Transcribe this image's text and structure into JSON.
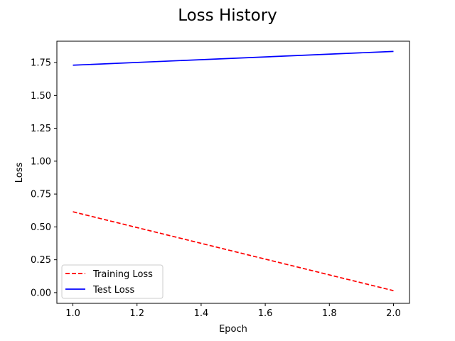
{
  "chart_data": {
    "type": "line",
    "title": "Loss History",
    "xlabel": "Epoch",
    "ylabel": "Loss",
    "xlim": [
      0.95,
      2.05
    ],
    "ylim": [
      -0.0815,
      1.9125
    ],
    "xticks": [
      1.0,
      1.2,
      1.4,
      1.6,
      1.8,
      2.0
    ],
    "xtick_labels": [
      "1.0",
      "1.2",
      "1.4",
      "1.6",
      "1.8",
      "2.0"
    ],
    "yticks": [
      0.0,
      0.25,
      0.5,
      0.75,
      1.0,
      1.25,
      1.5,
      1.75
    ],
    "ytick_labels": [
      "0.00",
      "0.25",
      "0.50",
      "0.75",
      "1.00",
      "1.25",
      "1.50",
      "1.75"
    ],
    "grid": false,
    "legend_position": "lower-left",
    "series": [
      {
        "name": "Training Loss",
        "x": [
          1.0,
          2.0
        ],
        "y": [
          0.615,
          0.015
        ],
        "color": "#ff0000",
        "style": "dashed"
      },
      {
        "name": "Test Loss",
        "x": [
          1.0,
          2.0
        ],
        "y": [
          1.73,
          1.835
        ],
        "color": "#0000ff",
        "style": "solid"
      }
    ]
  }
}
